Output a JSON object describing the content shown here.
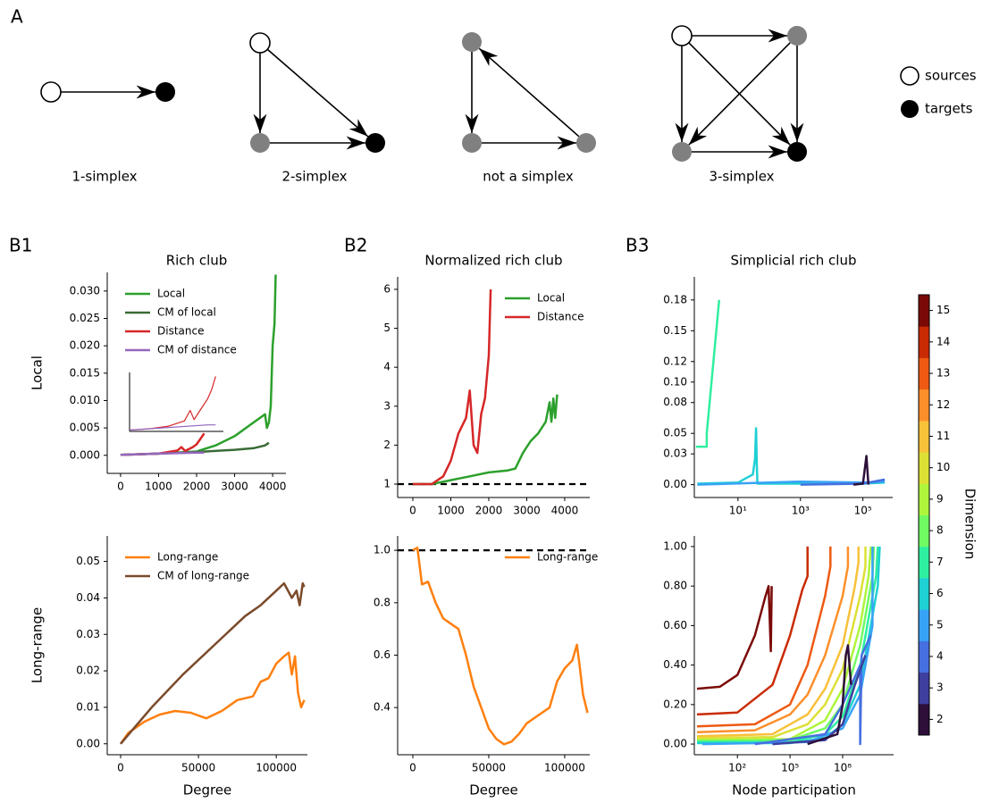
{
  "figure": {
    "panel_labels": [
      "A",
      "B1",
      "B2",
      "B3"
    ]
  },
  "panel_a": {
    "labels": [
      "1-simplex",
      "2-simplex",
      "not a simplex",
      "3-simplex"
    ],
    "legend": [
      "sources",
      "targets"
    ]
  },
  "chart_data": [
    {
      "type": "line",
      "title": "Rich club",
      "ylabel": "Local",
      "legend": "upper left",
      "xlim": [
        -350,
        4350
      ],
      "ylim": [
        -0.0033,
        0.0334
      ],
      "xticks": [
        0,
        1000,
        2000,
        3000,
        4000
      ],
      "yticks": [
        {
          "value": 0,
          "label": "0.000"
        },
        {
          "value": 0.005,
          "label": "0.005"
        },
        {
          "value": 0.01,
          "label": "0.010"
        },
        {
          "value": 0.015,
          "label": "0.015"
        },
        {
          "value": 0.02,
          "label": "0.020"
        },
        {
          "value": 0.025,
          "label": "0.025"
        },
        {
          "value": 0.03,
          "label": "0.030"
        }
      ],
      "series": [
        {
          "name": "Local",
          "color": "#2ca02c",
          "x": [
            0,
            1000,
            2000,
            2500,
            3000,
            3400,
            3700,
            3800,
            3850,
            3900,
            3950,
            4000,
            4050,
            4080
          ],
          "values": [
            0.0001,
            0.0003,
            0.0007,
            0.0018,
            0.0035,
            0.0055,
            0.007,
            0.0075,
            0.005,
            0.006,
            0.009,
            0.02,
            0.024,
            0.033
          ]
        },
        {
          "name": "CM of local",
          "color": "#3a6b35",
          "x": [
            0,
            1000,
            2000,
            3000,
            3500,
            3800,
            3900
          ],
          "values": [
            0.0001,
            0.0003,
            0.0006,
            0.001,
            0.0013,
            0.0018,
            0.0023
          ]
        },
        {
          "name": "Distance",
          "color": "#d62728",
          "x": [
            0,
            1000,
            1500,
            1600,
            1700,
            1900,
            2000,
            2100,
            2200
          ],
          "values": [
            0.0001,
            0.0003,
            0.0009,
            0.0015,
            0.0008,
            0.0015,
            0.002,
            0.003,
            0.004
          ]
        },
        {
          "name": "CM of distance",
          "color": "#9467bd",
          "x": [
            0,
            1000,
            2000,
            2200
          ],
          "values": [
            0.0001,
            0.0003,
            0.0005,
            0.0005
          ]
        }
      ]
    },
    {
      "type": "line",
      "xlim": [
        0,
        2400
      ],
      "ylim": [
        0,
        0.0045
      ],
      "series": [
        {
          "color": "#d62728",
          "x": [
            0,
            500,
            1000,
            1400,
            1550,
            1650,
            1800,
            2000,
            2100,
            2200
          ],
          "values": [
            0.0001,
            0.0002,
            0.0004,
            0.0008,
            0.0016,
            0.0009,
            0.0016,
            0.0025,
            0.0032,
            0.0042
          ]
        },
        {
          "color": "#9467bd",
          "x": [
            0,
            1000,
            2000,
            2200
          ],
          "values": [
            0.0001,
            0.0003,
            0.0005,
            0.0005
          ]
        }
      ]
    },
    {
      "type": "line",
      "ylabel": "Long-range",
      "xlabel": "Degree",
      "legend": "upper left",
      "xlim": [
        -8600,
        120000
      ],
      "ylim": [
        -0.003,
        0.057
      ],
      "xticks": [
        0,
        50000,
        100000
      ],
      "yticks": [
        {
          "value": 0,
          "label": "0.00"
        },
        {
          "value": 0.01,
          "label": "0.01"
        },
        {
          "value": 0.02,
          "label": "0.02"
        },
        {
          "value": 0.03,
          "label": "0.03"
        },
        {
          "value": 0.04,
          "label": "0.04"
        },
        {
          "value": 0.05,
          "label": "0.05"
        }
      ],
      "series": [
        {
          "name": "Long-range",
          "color": "#ff7f0e",
          "x": [
            0,
            5000,
            15000,
            25000,
            35000,
            45000,
            55000,
            65000,
            75000,
            85000,
            90000,
            95000,
            100000,
            105000,
            108000,
            110000,
            112000,
            114000,
            116000,
            118000
          ],
          "values": [
            0,
            0.003,
            0.006,
            0.008,
            0.009,
            0.0085,
            0.007,
            0.009,
            0.012,
            0.013,
            0.017,
            0.018,
            0.022,
            0.024,
            0.025,
            0.019,
            0.024,
            0.014,
            0.01,
            0.012
          ]
        },
        {
          "name": "CM of long-range",
          "color": "#7b4a2a",
          "x": [
            0,
            10000,
            20000,
            40000,
            60000,
            80000,
            90000,
            100000,
            105000,
            110000,
            113000,
            115000,
            117000,
            118000
          ],
          "values": [
            0,
            0.005,
            0.01,
            0.019,
            0.027,
            0.035,
            0.038,
            0.042,
            0.044,
            0.04,
            0.042,
            0.038,
            0.044,
            0.043
          ]
        }
      ]
    },
    {
      "type": "line",
      "title": "Normalized rich club",
      "legend": "upper right",
      "hline": 1,
      "xlim": [
        -400,
        4660
      ],
      "ylim": [
        0.656,
        6.32
      ],
      "xticks": [
        0,
        1000,
        2000,
        3000,
        4000
      ],
      "yticks": [
        1,
        2,
        3,
        4,
        5,
        6
      ],
      "series": [
        {
          "name": "Local",
          "color": "#2ca02c",
          "x": [
            0,
            500,
            1000,
            1500,
            2000,
            2500,
            2700,
            2900,
            3100,
            3300,
            3500,
            3600,
            3650,
            3700,
            3750,
            3800
          ],
          "values": [
            1.0,
            1.0,
            1.1,
            1.2,
            1.3,
            1.35,
            1.4,
            1.8,
            2.1,
            2.3,
            2.6,
            3.1,
            2.6,
            3.2,
            2.7,
            3.3
          ]
        },
        {
          "name": "Distance",
          "color": "#d62728",
          "x": [
            0,
            500,
            800,
            1000,
            1200,
            1400,
            1500,
            1600,
            1700,
            1800,
            1900,
            2000,
            2050
          ],
          "values": [
            1.0,
            1.0,
            1.2,
            1.6,
            2.3,
            2.7,
            3.4,
            2.0,
            1.8,
            2.8,
            3.2,
            4.3,
            6.0
          ]
        }
      ]
    },
    {
      "type": "line",
      "xlabel": "Degree",
      "legend": "upper right",
      "hline": 1,
      "xlim": [
        -10000,
        116500
      ],
      "ylim": [
        0.22,
        1.055
      ],
      "xticks": [
        0,
        50000,
        100000
      ],
      "yticks": [
        0.4,
        0.6,
        0.8,
        {
          "value": 1,
          "label": "1.0"
        }
      ],
      "series": [
        {
          "name": "Long-range",
          "color": "#ff7f0e",
          "x": [
            0,
            3000,
            6000,
            10000,
            15000,
            20000,
            25000,
            30000,
            35000,
            40000,
            45000,
            50000,
            55000,
            60000,
            65000,
            70000,
            75000,
            80000,
            90000,
            95000,
            100000,
            105000,
            108000,
            110000,
            112000,
            115000
          ],
          "values": [
            1.0,
            1.01,
            0.87,
            0.88,
            0.8,
            0.74,
            0.72,
            0.7,
            0.6,
            0.48,
            0.4,
            0.32,
            0.28,
            0.26,
            0.27,
            0.3,
            0.34,
            0.36,
            0.4,
            0.5,
            0.55,
            0.58,
            0.64,
            0.55,
            0.45,
            0.38
          ]
        }
      ]
    },
    {
      "type": "line",
      "title": "Simplicial rich club",
      "xscale": "log",
      "xlim": [
        0.4,
        900000
      ],
      "ylim": [
        -0.0125,
        0.2025
      ],
      "xticks": [
        {
          "value": 10,
          "label": "10¹"
        },
        {
          "value": 1000,
          "label": "10³"
        },
        {
          "value": 100000,
          "label": "10⁵"
        }
      ],
      "yticks": [
        {
          "value": 0,
          "label": "0.00"
        },
        0.03,
        0.05,
        0.08,
        {
          "value": 0.1,
          "label": "0.10"
        },
        0.12,
        0.15,
        0.18
      ],
      "series": [
        {
          "color": "#2fefa0",
          "x": [
            0.45,
            1,
            1,
            2.5
          ],
          "values": [
            0.037,
            0.037,
            0.05,
            0.18
          ]
        },
        {
          "color": "#1fd0d5",
          "x": [
            0.5,
            10,
            30,
            35,
            38,
            40,
            42,
            100000,
            500000
          ],
          "values": [
            0.001,
            0.002,
            0.01,
            0.025,
            0.055,
            0.02,
            0.001,
            0.001,
            0.002
          ]
        },
        {
          "color": "#38a3f5",
          "x": [
            0.5,
            1000,
            100000,
            500000
          ],
          "values": [
            0,
            0.003,
            0.002,
            0.003
          ]
        },
        {
          "color": "#4670e0",
          "x": [
            1000,
            100000,
            500000
          ],
          "values": [
            0,
            0.001,
            0.005
          ]
        },
        {
          "color": "#2d0f3a",
          "x": [
            50000,
            100000,
            130000,
            150000
          ],
          "values": [
            0,
            0.001,
            0.028,
            0
          ]
        }
      ]
    },
    {
      "type": "line",
      "xlabel": "Node participation",
      "xscale": "log",
      "xlim": [
        0.35,
        80000000000
      ],
      "ylim": [
        -0.054,
        1.054
      ],
      "xticks": [
        {
          "value": 100,
          "label": "10²"
        },
        {
          "value": 100000,
          "label": "10⁵"
        },
        {
          "value": 100000000,
          "label": "10⁸"
        }
      ],
      "yticks": [
        {
          "value": 0,
          "label": "0.00"
        },
        {
          "value": 0.2,
          "label": "0.20"
        },
        {
          "value": 0.4,
          "label": "0.40"
        },
        {
          "value": 0.6,
          "label": "0.60"
        },
        {
          "value": 0.8,
          "label": "0.80"
        },
        {
          "value": 1,
          "label": "1.00"
        }
      ],
      "series": [
        {
          "color": "#7a0a08",
          "x": [
            0.5,
            10,
            100,
            1000,
            4000,
            6000,
            8000,
            9000
          ],
          "values": [
            0.28,
            0.29,
            0.35,
            0.55,
            0.75,
            0.8,
            0.47,
            0.8
          ]
        },
        {
          "color": "#c92b04",
          "x": [
            0.5,
            100,
            10000,
            100000,
            500000,
            1000000,
            1000000
          ],
          "values": [
            0.15,
            0.16,
            0.3,
            0.55,
            0.78,
            0.85,
            1.0
          ]
        },
        {
          "color": "#ee5a13",
          "x": [
            0.5,
            1000,
            100000,
            1000000,
            10000000,
            20000000,
            20000000
          ],
          "values": [
            0.09,
            0.1,
            0.2,
            0.4,
            0.75,
            0.9,
            1.0
          ]
        },
        {
          "color": "#fd8f2a",
          "x": [
            0.5,
            1000,
            100000,
            1000000,
            10000000,
            100000000,
            200000000,
            200000000
          ],
          "values": [
            0.06,
            0.07,
            0.15,
            0.25,
            0.45,
            0.75,
            0.9,
            1.0
          ]
        },
        {
          "color": "#f8c13a",
          "x": [
            0.5,
            10000,
            1000000,
            10000000,
            100000000,
            500000000,
            800000000,
            800000000
          ],
          "values": [
            0.04,
            0.05,
            0.15,
            0.28,
            0.5,
            0.8,
            0.92,
            1.0
          ]
        },
        {
          "color": "#dde034",
          "x": [
            0.5,
            10000,
            1000000,
            10000000,
            100000000,
            1000000000,
            2000000000,
            2000000000
          ],
          "values": [
            0.03,
            0.035,
            0.1,
            0.2,
            0.38,
            0.75,
            0.9,
            1.0
          ]
        },
        {
          "color": "#aef53c",
          "x": [
            0.5,
            100000,
            10000000,
            100000000,
            1000000000,
            3000000000,
            4000000000
          ],
          "values": [
            0.02,
            0.025,
            0.12,
            0.28,
            0.6,
            0.85,
            1.0
          ]
        },
        {
          "color": "#70fb62",
          "x": [
            0.5,
            100000,
            10000000,
            100000000,
            1000000000,
            5000000000,
            6000000000
          ],
          "values": [
            0.015,
            0.02,
            0.08,
            0.2,
            0.5,
            0.85,
            1.0
          ]
        },
        {
          "color": "#2fefa0",
          "x": [
            0.5,
            100000,
            10000000,
            100000000,
            1000000000,
            8000000000,
            10000000000
          ],
          "values": [
            0.01,
            0.01,
            0.05,
            0.14,
            0.4,
            0.85,
            1.0
          ]
        },
        {
          "color": "#1fd0d5",
          "x": [
            0.5,
            100000,
            10000000,
            100000000,
            1000000000,
            10000000000,
            13000000000
          ],
          "values": [
            0.005,
            0.005,
            0.03,
            0.1,
            0.3,
            0.8,
            1.0
          ]
        },
        {
          "color": "#38a3f5",
          "x": [
            1,
            1000000,
            100000000,
            1000000000,
            5000000000,
            5000000000
          ],
          "values": [
            0,
            0.01,
            0.08,
            0.25,
            0.6,
            1.0
          ]
        },
        {
          "color": "#4670e0",
          "x": [
            1000,
            10000000,
            100000000,
            1000000000,
            1000000000,
            1200000000,
            4000000000
          ],
          "values": [
            0,
            0.05,
            0.2,
            0.4,
            0,
            0.45,
            0.55
          ]
        },
        {
          "color": "#3e3f9e",
          "x": [
            10000,
            10000000,
            100000000,
            500000000,
            2000000000
          ],
          "values": [
            0,
            0.02,
            0.1,
            0.3,
            0.45
          ]
        },
        {
          "color": "#2d0f3a",
          "x": [
            1000000,
            50000000,
            100000000,
            150000000,
            200000000,
            300000000
          ],
          "values": [
            0,
            0.05,
            0.2,
            0.45,
            0.5,
            0.3
          ]
        }
      ]
    },
    {
      "type": "colorbar",
      "label": "Dimension",
      "lim": [
        1.5,
        15.5
      ],
      "ticks": [
        2,
        3,
        4,
        5,
        6,
        7,
        8,
        9,
        10,
        11,
        12,
        13,
        14,
        15
      ],
      "colors": [
        "#2d0f3a",
        "#3e3f9e",
        "#4670e0",
        "#38a3f5",
        "#1fd0d5",
        "#2fefa0",
        "#70fb62",
        "#aef53c",
        "#dde034",
        "#f8c13a",
        "#fd8f2a",
        "#ee5a13",
        "#c92b04",
        "#7a0a08"
      ]
    }
  ]
}
